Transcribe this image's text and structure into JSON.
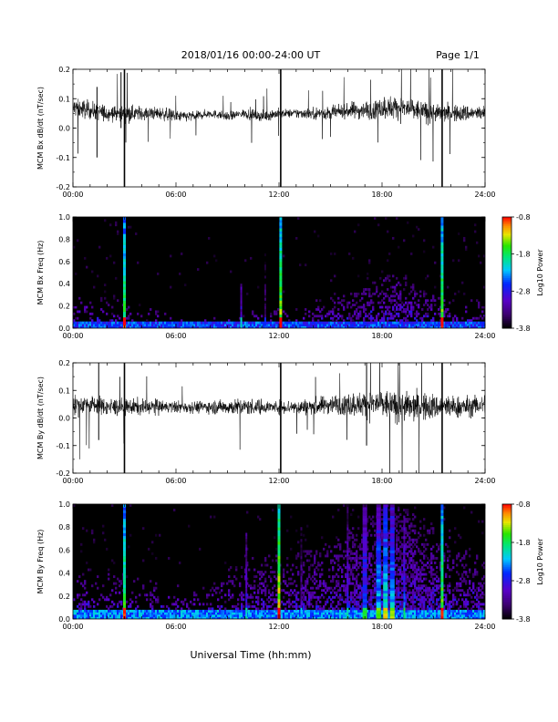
{
  "header": {
    "title": "2018/01/16  00:00-24:00 UT",
    "page": "Page 1/1"
  },
  "footer": {
    "xlabel": "Universal Time (hh:mm)"
  },
  "chart_data": [
    {
      "type": "line",
      "ylabel": "MCM Bx dB/dt (nT/sec)",
      "xlim": [
        0,
        24
      ],
      "ylim": [
        -0.2,
        0.2
      ],
      "x_ticks": [
        "00:00",
        "06:00",
        "12:00",
        "18:00",
        "24:00"
      ],
      "y_ticks": [
        "0.2",
        "0.1",
        "0.0",
        "-0.1",
        "-0.2"
      ],
      "baseline": 0.05,
      "series": [
        {
          "values": [
            0.07,
            0.06,
            0.05,
            0.05,
            0.05,
            0.05,
            0.04,
            0.04,
            0.05,
            0.04,
            0.05,
            0.04,
            0.05,
            0.05,
            0.05,
            0.05,
            0.06,
            0.06,
            0.07,
            0.07,
            0.06,
            0.05,
            0.05,
            0.05,
            0.05
          ]
        }
      ],
      "amplitude_by_hour": [
        0.045,
        0.04,
        0.035,
        0.035,
        0.03,
        0.03,
        0.025,
        0.02,
        0.02,
        0.02,
        0.025,
        0.025,
        0.02,
        0.025,
        0.03,
        0.03,
        0.04,
        0.045,
        0.055,
        0.055,
        0.05,
        0.04,
        0.04,
        0.035
      ],
      "spikes": [
        {
          "x": 3.0,
          "y_min": -0.2,
          "y_max": 0.2
        },
        {
          "x": 12.1,
          "y_min": -0.2,
          "y_max": 0.2
        },
        {
          "x": 21.5,
          "y_min": -0.2,
          "y_max": 0.2
        },
        {
          "x": 2.8,
          "y_min": 0.0,
          "y_max": 0.19
        },
        {
          "x": 1.4,
          "y_min": -0.1,
          "y_max": 0.14
        }
      ]
    },
    {
      "type": "heatmap",
      "ylabel": "MCM Bx Freq (Hz)",
      "xlim": [
        0,
        24
      ],
      "ylim": [
        0,
        1.0
      ],
      "x_ticks": [
        "00:00",
        "06:00",
        "12:00",
        "18:00",
        "24:00"
      ],
      "y_ticks": [
        "1.0",
        "0.8",
        "0.6",
        "0.4",
        "0.2",
        "0.0"
      ],
      "colorbar": {
        "label": "Log10 Power",
        "ticks": [
          "-0.8",
          "-1.8",
          "-2.8",
          "-3.8"
        ],
        "range": [
          -3.8,
          -0.8
        ]
      },
      "background_level": -3.8,
      "floor_band": {
        "max_freq": 0.06,
        "level": -2.6
      },
      "noise_envelope_hz": [
        0.3,
        0.28,
        0.25,
        0.2,
        0.18,
        0.16,
        0.14,
        0.12,
        0.1,
        0.12,
        0.15,
        0.18,
        0.2,
        0.22,
        0.25,
        0.3,
        0.35,
        0.45,
        0.5,
        0.45,
        0.35,
        0.3,
        0.25,
        0.25
      ],
      "activity_by_hour": [
        0.3,
        0.25,
        0.2,
        0.2,
        0.18,
        0.15,
        0.12,
        0.12,
        0.12,
        0.15,
        0.2,
        0.2,
        0.2,
        0.25,
        0.3,
        0.35,
        0.45,
        0.55,
        0.6,
        0.55,
        0.45,
        0.35,
        0.3,
        0.3
      ],
      "columns": [
        {
          "x": 3.0,
          "level": -1.6,
          "max_freq": 1.0
        },
        {
          "x": 12.1,
          "level": -1.4,
          "max_freq": 1.0
        },
        {
          "x": 21.5,
          "level": -1.5,
          "max_freq": 1.0
        },
        {
          "x": 9.8,
          "level": -2.9,
          "max_freq": 0.4
        },
        {
          "x": 11.2,
          "level": -3.3,
          "max_freq": 0.95
        }
      ]
    },
    {
      "type": "line",
      "ylabel": "MCM By dB/dt (nT/sec)",
      "xlim": [
        0,
        24
      ],
      "ylim": [
        -0.2,
        0.2
      ],
      "x_ticks": [
        "00:00",
        "06:00",
        "12:00",
        "18:00",
        "24:00"
      ],
      "y_ticks": [
        "0.2",
        "0.1",
        "0.0",
        "-0.1",
        "-0.2"
      ],
      "baseline": 0.04,
      "series": [
        {
          "values": [
            0.05,
            0.05,
            0.04,
            0.04,
            0.04,
            0.04,
            0.04,
            0.04,
            0.04,
            0.04,
            0.04,
            0.04,
            0.04,
            0.04,
            0.04,
            0.05,
            0.05,
            0.05,
            0.05,
            0.04,
            0.04,
            0.04,
            0.04,
            0.04,
            0.05
          ]
        }
      ],
      "amplitude_by_hour": [
        0.05,
        0.045,
        0.045,
        0.04,
        0.04,
        0.03,
        0.03,
        0.03,
        0.035,
        0.04,
        0.04,
        0.03,
        0.035,
        0.04,
        0.045,
        0.05,
        0.06,
        0.07,
        0.075,
        0.075,
        0.07,
        0.06,
        0.055,
        0.05
      ],
      "spikes": [
        {
          "x": 3.0,
          "y_min": -0.2,
          "y_max": 0.2
        },
        {
          "x": 12.1,
          "y_min": -0.2,
          "y_max": 0.2
        },
        {
          "x": 21.5,
          "y_min": -0.2,
          "y_max": 0.2
        },
        {
          "x": 1.5,
          "y_min": -0.08,
          "y_max": 0.2
        },
        {
          "x": 17.1,
          "y_min": -0.1,
          "y_max": 0.2
        }
      ]
    },
    {
      "type": "heatmap",
      "ylabel": "MCM By Freq (Hz)",
      "xlim": [
        0,
        24
      ],
      "ylim": [
        0,
        1.0
      ],
      "x_ticks": [
        "00:00",
        "06:00",
        "12:00",
        "18:00",
        "24:00"
      ],
      "y_ticks": [
        "1.0",
        "0.8",
        "0.6",
        "0.4",
        "0.2",
        "0.0"
      ],
      "colorbar": {
        "label": "Log10 Power",
        "ticks": [
          "-0.8",
          "-1.8",
          "-2.8",
          "-3.8"
        ],
        "range": [
          -3.8,
          -0.8
        ]
      },
      "background_level": -3.8,
      "floor_band": {
        "max_freq": 0.07,
        "level": -2.4
      },
      "noise_envelope_hz": [
        0.45,
        0.4,
        0.4,
        0.35,
        0.35,
        0.3,
        0.3,
        0.3,
        0.35,
        0.45,
        0.55,
        0.55,
        0.5,
        0.6,
        0.65,
        0.7,
        0.8,
        0.9,
        1.0,
        0.95,
        0.85,
        0.75,
        0.6,
        0.55
      ],
      "activity_by_hour": [
        0.35,
        0.3,
        0.3,
        0.28,
        0.25,
        0.22,
        0.22,
        0.22,
        0.25,
        0.35,
        0.45,
        0.45,
        0.4,
        0.5,
        0.55,
        0.6,
        0.7,
        0.75,
        0.8,
        0.8,
        0.75,
        0.6,
        0.5,
        0.45
      ],
      "columns": [
        {
          "x": 3.0,
          "level": -1.6,
          "max_freq": 1.0
        },
        {
          "x": 12.0,
          "level": -1.2,
          "max_freq": 1.0
        },
        {
          "x": 21.5,
          "level": -1.5,
          "max_freq": 1.0
        },
        {
          "x": 10.1,
          "level": -2.8,
          "max_freq": 0.75
        },
        {
          "x": 16.0,
          "level": -2.7,
          "max_freq": 1.0
        },
        {
          "x": 17.0,
          "level": -2.4,
          "max_freq": 1.0
        },
        {
          "x": 17.8,
          "level": -2.2,
          "max_freq": 1.0
        },
        {
          "x": 18.2,
          "level": -2.0,
          "max_freq": 1.0
        },
        {
          "x": 18.6,
          "level": -2.2,
          "max_freq": 1.0
        },
        {
          "x": 19.3,
          "level": -2.5,
          "max_freq": 0.9
        },
        {
          "x": 13.3,
          "level": -3.0,
          "max_freq": 0.8
        }
      ]
    }
  ]
}
